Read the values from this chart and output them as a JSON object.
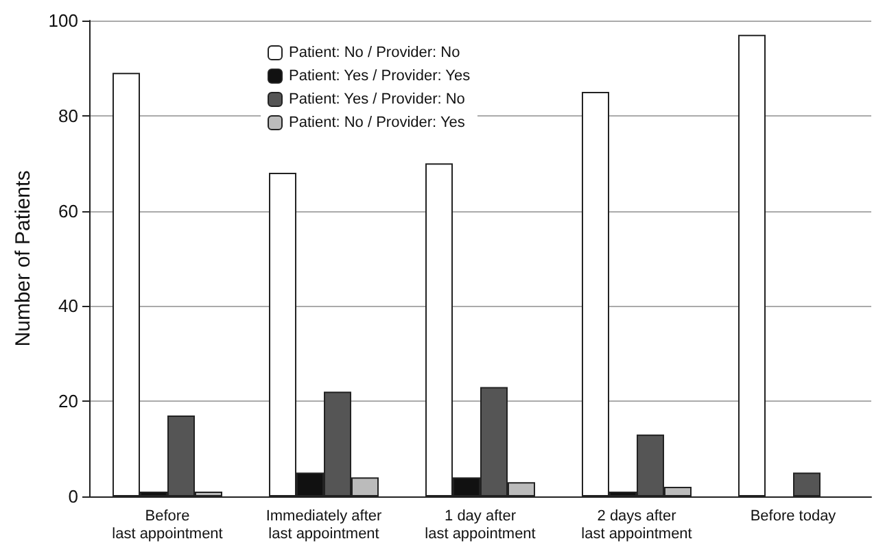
{
  "chart_data": {
    "type": "bar",
    "ylabel": "Number of Patients",
    "categories": [
      "Before\nlast appointment",
      "Immediately after\nlast appointment",
      "1 day after\nlast appointment",
      "2 days after\nlast appointment",
      "Before today"
    ],
    "series": [
      {
        "name": "Patient: No / Provider: No",
        "color": "#ffffff",
        "values": [
          89,
          68,
          70,
          85,
          97
        ]
      },
      {
        "name": "Patient: Yes / Provider: Yes",
        "color": "#111111",
        "values": [
          1,
          5,
          4,
          1,
          null
        ]
      },
      {
        "name": "Patient: Yes / Provider: No",
        "color": "#555555",
        "values": [
          17,
          22,
          23,
          13,
          5
        ]
      },
      {
        "name": "Patient: No / Provider: Yes",
        "color": "#bbbbbb",
        "values": [
          1,
          4,
          3,
          2,
          null
        ]
      }
    ],
    "ylim": [
      0,
      100
    ],
    "yticks": [
      0,
      20,
      40,
      60,
      80,
      100
    ],
    "grid": "y",
    "legend": "top"
  }
}
